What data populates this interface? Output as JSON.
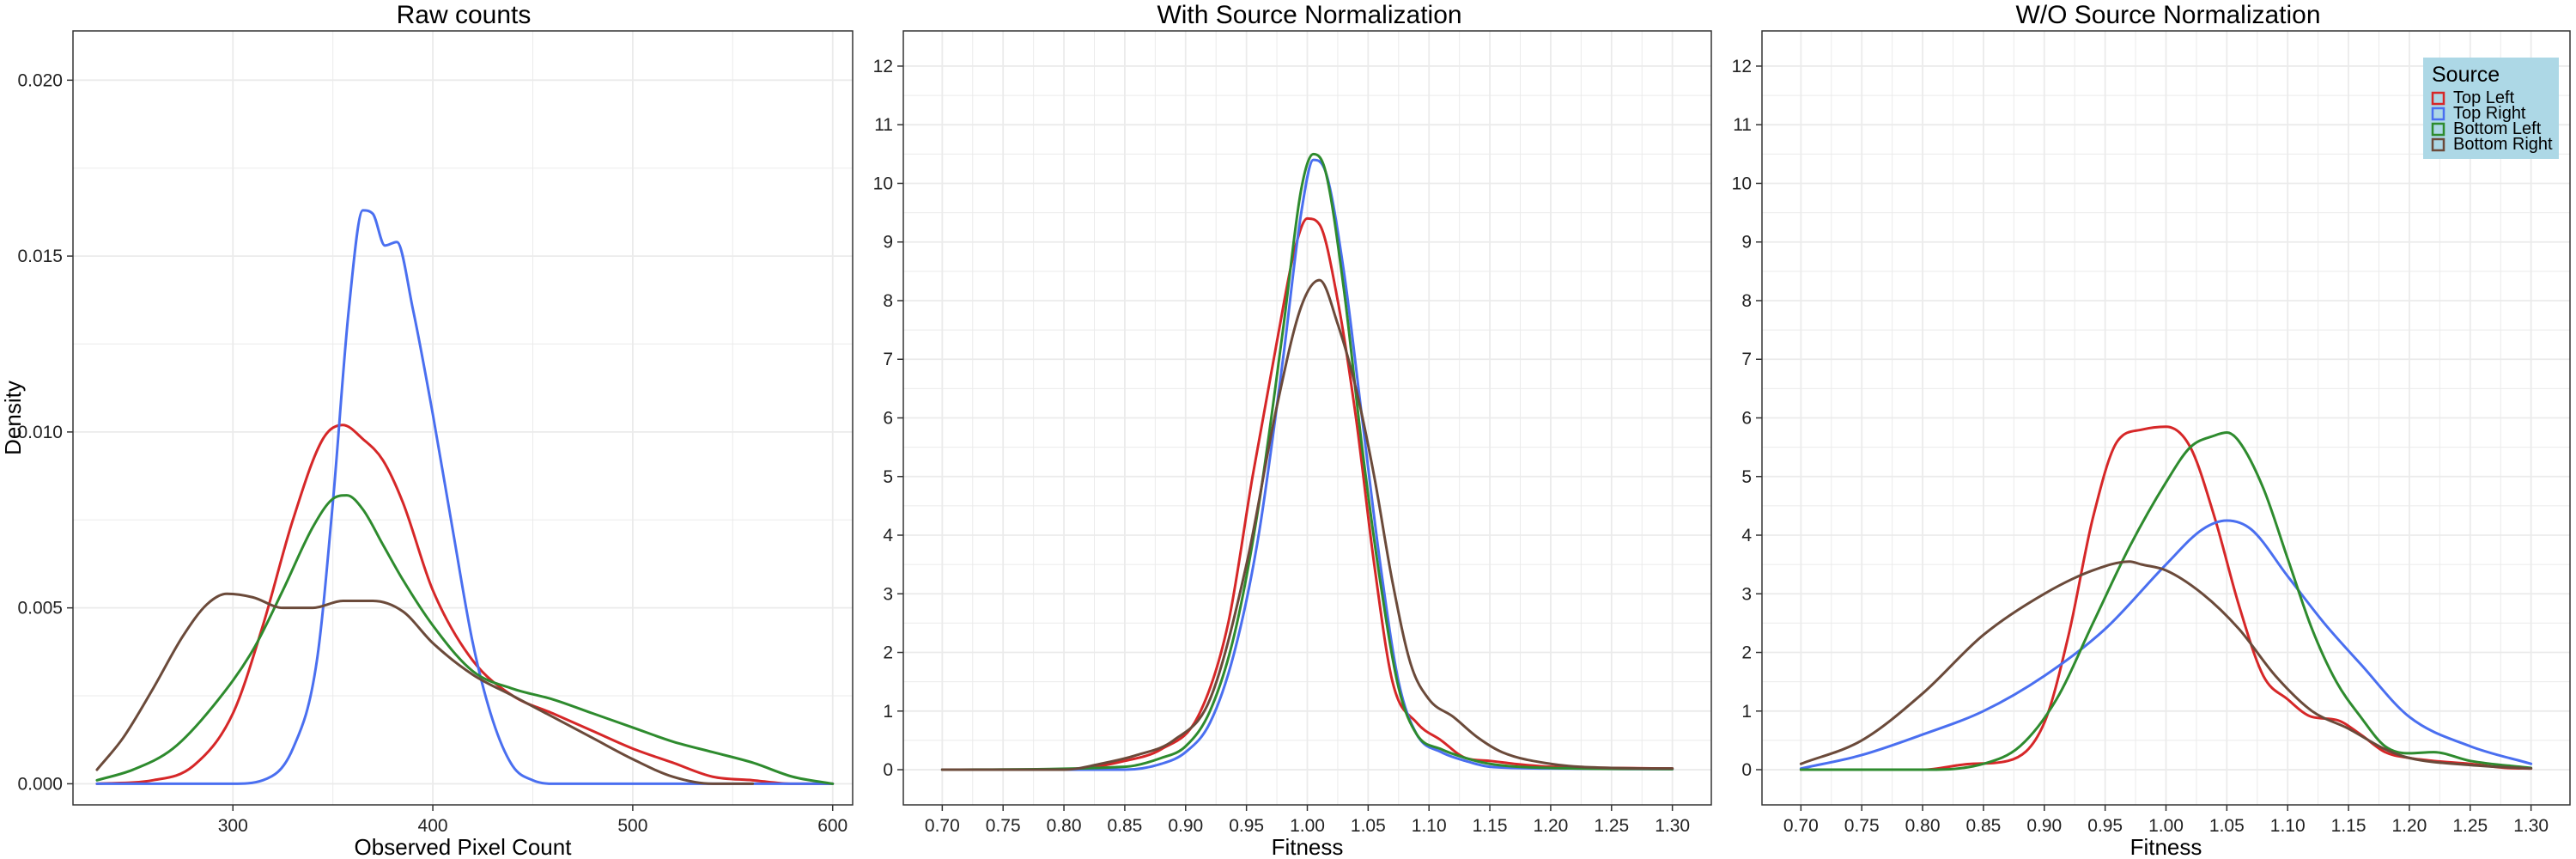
{
  "colors": {
    "top_left": "#d62728",
    "top_right": "#4a6ff0",
    "bottom_left": "#2e8b2e",
    "bottom_right": "#6b4a3a",
    "legend_bg": "#add8e6",
    "grid": "#ebebeb",
    "panel_border": "#333333"
  },
  "legend": {
    "title": "Source",
    "position": "top-right",
    "panel_index": 2,
    "entries": [
      "Top Left",
      "Top Right",
      "Bottom Left",
      "Bottom Right"
    ]
  },
  "chart_data": [
    {
      "type": "line",
      "title": "Raw counts",
      "xlabel": "Observed Pixel Count",
      "ylabel": "Density",
      "xlim": [
        220,
        610
      ],
      "ylim": [
        -0.0006,
        0.0214
      ],
      "xticks": [
        300,
        400,
        500,
        600
      ],
      "xtick_labels": [
        "300",
        "400",
        "500",
        "600"
      ],
      "yticks": [
        0,
        0.005,
        0.01,
        0.015,
        0.02
      ],
      "ytick_labels": [
        "0.000",
        "0.005",
        "0.010",
        "0.015",
        "0.020"
      ],
      "grid": true,
      "series": [
        {
          "name": "Top Left",
          "color_key": "top_left",
          "x": [
            232,
            260,
            280,
            300,
            315,
            330,
            345,
            355,
            365,
            375,
            385,
            400,
            420,
            440,
            460,
            480,
            500,
            520,
            540,
            560,
            580,
            600
          ],
          "y": [
            0.0,
            0.0001,
            0.0005,
            0.002,
            0.0045,
            0.0075,
            0.0098,
            0.0102,
            0.0098,
            0.0092,
            0.008,
            0.0055,
            0.0035,
            0.0025,
            0.002,
            0.0015,
            0.001,
            0.0006,
            0.0002,
            0.0001,
            0.0,
            0.0
          ]
        },
        {
          "name": "Top Right",
          "color_key": "top_right",
          "x": [
            232,
            300,
            315,
            330,
            342,
            350,
            358,
            365,
            370,
            376,
            382,
            390,
            400,
            410,
            420,
            430,
            440,
            450,
            460,
            600
          ],
          "y": [
            0.0,
            0.0,
            0.0001,
            0.001,
            0.0035,
            0.008,
            0.0135,
            0.0163,
            0.0162,
            0.0153,
            0.0154,
            0.0135,
            0.0105,
            0.0072,
            0.004,
            0.0018,
            0.0005,
            0.0001,
            0.0,
            0.0
          ]
        },
        {
          "name": "Bottom Left",
          "color_key": "bottom_left",
          "x": [
            232,
            250,
            270,
            290,
            310,
            325,
            340,
            350,
            357,
            365,
            375,
            385,
            400,
            420,
            440,
            460,
            480,
            500,
            520,
            540,
            560,
            580,
            600
          ],
          "y": [
            0.0001,
            0.0004,
            0.001,
            0.0022,
            0.0038,
            0.0055,
            0.0073,
            0.0081,
            0.0082,
            0.0078,
            0.0068,
            0.0058,
            0.0045,
            0.0032,
            0.0027,
            0.0024,
            0.002,
            0.0016,
            0.0012,
            0.0009,
            0.0006,
            0.0002,
            0.0
          ]
        },
        {
          "name": "Bottom Right",
          "color_key": "bottom_right",
          "x": [
            232,
            245,
            260,
            275,
            287,
            297,
            310,
            325,
            340,
            355,
            370,
            385,
            400,
            420,
            440,
            460,
            480,
            500,
            520,
            540,
            560
          ],
          "y": [
            0.0004,
            0.0013,
            0.0027,
            0.0042,
            0.0051,
            0.0054,
            0.0053,
            0.005,
            0.005,
            0.0052,
            0.0052,
            0.0049,
            0.004,
            0.0031,
            0.0025,
            0.0019,
            0.0013,
            0.0007,
            0.0002,
            0.0,
            0.0
          ]
        }
      ]
    },
    {
      "type": "line",
      "title": "With Source Normalization",
      "xlabel": "Fitness",
      "ylabel": "",
      "xlim": [
        0.668,
        1.332
      ],
      "ylim": [
        -0.6,
        12.6
      ],
      "xticks": [
        0.7,
        0.75,
        0.8,
        0.85,
        0.9,
        0.95,
        1.0,
        1.05,
        1.1,
        1.15,
        1.2,
        1.25,
        1.3
      ],
      "xtick_labels": [
        "0.70",
        "0.75",
        "0.80",
        "0.85",
        "0.90",
        "0.95",
        "1.00",
        "1.05",
        "1.10",
        "1.15",
        "1.20",
        "1.25",
        "1.30"
      ],
      "yticks": [
        0,
        1,
        2,
        3,
        4,
        5,
        6,
        7,
        8,
        9,
        10,
        11,
        12
      ],
      "ytick_labels": [
        "0",
        "1",
        "2",
        "3",
        "4",
        "5",
        "6",
        "7",
        "8",
        "9",
        "10",
        "11",
        "12"
      ],
      "grid": true,
      "series": [
        {
          "name": "Top Left",
          "color_key": "top_left",
          "x": [
            0.7,
            0.8,
            0.85,
            0.88,
            0.91,
            0.935,
            0.955,
            0.975,
            0.99,
            1.0,
            1.01,
            1.025,
            1.04,
            1.055,
            1.07,
            1.09,
            1.11,
            1.13,
            1.15,
            1.17,
            1.2,
            1.25,
            1.3
          ],
          "y": [
            0,
            0,
            0.15,
            0.35,
            0.9,
            2.5,
            5.0,
            7.3,
            8.9,
            9.4,
            9.3,
            8.0,
            6.0,
            3.5,
            1.5,
            0.8,
            0.5,
            0.2,
            0.15,
            0.1,
            0.05,
            0.03,
            0.02
          ]
        },
        {
          "name": "Top Right",
          "color_key": "top_right",
          "x": [
            0.7,
            0.85,
            0.88,
            0.9,
            0.92,
            0.94,
            0.96,
            0.98,
            0.995,
            1.005,
            1.015,
            1.03,
            1.045,
            1.06,
            1.075,
            1.09,
            1.11,
            1.13,
            1.15,
            1.2,
            1.3
          ],
          "y": [
            0,
            0,
            0.1,
            0.3,
            0.8,
            2.0,
            4.0,
            7.0,
            9.5,
            10.4,
            10.2,
            8.5,
            6.0,
            3.5,
            1.5,
            0.6,
            0.3,
            0.15,
            0.05,
            0.02,
            0.01
          ]
        },
        {
          "name": "Bottom Left",
          "color_key": "bottom_left",
          "x": [
            0.7,
            0.85,
            0.88,
            0.9,
            0.92,
            0.94,
            0.96,
            0.98,
            0.995,
            1.005,
            1.015,
            1.03,
            1.045,
            1.06,
            1.075,
            1.09,
            1.11,
            1.13,
            1.15,
            1.2,
            1.3
          ],
          "y": [
            0,
            0.05,
            0.2,
            0.4,
            1.0,
            2.3,
            4.5,
            7.5,
            9.9,
            10.5,
            10.2,
            8.2,
            5.5,
            3.2,
            1.4,
            0.6,
            0.35,
            0.2,
            0.1,
            0.03,
            0.01
          ]
        },
        {
          "name": "Bottom Right",
          "color_key": "bottom_right",
          "x": [
            0.7,
            0.8,
            0.83,
            0.86,
            0.89,
            0.92,
            0.95,
            0.975,
            0.995,
            1.01,
            1.025,
            1.04,
            1.055,
            1.07,
            1.085,
            1.1,
            1.12,
            1.14,
            1.16,
            1.2,
            1.25,
            1.3
          ],
          "y": [
            0,
            0,
            0.1,
            0.25,
            0.5,
            1.2,
            3.5,
            6.2,
            7.9,
            8.35,
            7.6,
            6.5,
            5.0,
            3.2,
            1.8,
            1.2,
            0.9,
            0.55,
            0.3,
            0.1,
            0.03,
            0.02
          ]
        }
      ]
    },
    {
      "type": "line",
      "title": "W/O Source Normalization",
      "xlabel": "Fitness",
      "ylabel": "",
      "xlim": [
        0.668,
        1.332
      ],
      "ylim": [
        -0.6,
        12.6
      ],
      "xticks": [
        0.7,
        0.75,
        0.8,
        0.85,
        0.9,
        0.95,
        1.0,
        1.05,
        1.1,
        1.15,
        1.2,
        1.25,
        1.3
      ],
      "xtick_labels": [
        "0.70",
        "0.75",
        "0.80",
        "0.85",
        "0.90",
        "0.95",
        "1.00",
        "1.05",
        "1.10",
        "1.15",
        "1.20",
        "1.25",
        "1.30"
      ],
      "yticks": [
        0,
        1,
        2,
        3,
        4,
        5,
        6,
        7,
        8,
        9,
        10,
        11,
        12
      ],
      "ytick_labels": [
        "0",
        "1",
        "2",
        "3",
        "4",
        "5",
        "6",
        "7",
        "8",
        "9",
        "10",
        "11",
        "12"
      ],
      "grid": true,
      "series": [
        {
          "name": "Top Left",
          "color_key": "top_left",
          "x": [
            0.7,
            0.8,
            0.84,
            0.87,
            0.9,
            0.92,
            0.94,
            0.96,
            0.98,
            1.0,
            1.02,
            1.04,
            1.06,
            1.08,
            1.1,
            1.12,
            1.14,
            1.16,
            1.18,
            1.2,
            1.22,
            1.25,
            1.28,
            1.3
          ],
          "y": [
            0,
            0,
            0.1,
            0.15,
            0.8,
            2.3,
            4.3,
            5.6,
            5.8,
            5.85,
            5.5,
            4.3,
            2.8,
            1.6,
            1.2,
            0.9,
            0.85,
            0.6,
            0.3,
            0.2,
            0.15,
            0.1,
            0.03,
            0.02
          ]
        },
        {
          "name": "Top Right",
          "color_key": "top_right",
          "x": [
            0.7,
            0.75,
            0.8,
            0.85,
            0.9,
            0.95,
            1.0,
            1.03,
            1.05,
            1.07,
            1.1,
            1.13,
            1.16,
            1.2,
            1.25,
            1.3
          ],
          "y": [
            0.02,
            0.25,
            0.6,
            1.0,
            1.6,
            2.4,
            3.5,
            4.1,
            4.25,
            4.1,
            3.3,
            2.5,
            1.8,
            0.9,
            0.4,
            0.1
          ]
        },
        {
          "name": "Bottom Left",
          "color_key": "bottom_left",
          "x": [
            0.7,
            0.8,
            0.85,
            0.88,
            0.91,
            0.94,
            0.97,
            1.0,
            1.02,
            1.04,
            1.05,
            1.06,
            1.08,
            1.1,
            1.12,
            1.14,
            1.16,
            1.18,
            1.2,
            1.22,
            1.25,
            1.3
          ],
          "y": [
            0,
            0,
            0.1,
            0.4,
            1.2,
            2.5,
            3.8,
            4.9,
            5.5,
            5.7,
            5.75,
            5.6,
            4.8,
            3.6,
            2.4,
            1.5,
            0.9,
            0.4,
            0.28,
            0.3,
            0.15,
            0.03
          ]
        },
        {
          "name": "Bottom Right",
          "color_key": "bottom_right",
          "x": [
            0.7,
            0.75,
            0.8,
            0.85,
            0.9,
            0.94,
            0.97,
            0.98,
            1.0,
            1.03,
            1.06,
            1.09,
            1.12,
            1.15,
            1.18,
            1.2,
            1.25,
            1.3
          ],
          "y": [
            0.1,
            0.5,
            1.3,
            2.3,
            3.0,
            3.4,
            3.55,
            3.5,
            3.4,
            3.0,
            2.4,
            1.6,
            1.0,
            0.7,
            0.35,
            0.2,
            0.08,
            0.02
          ]
        }
      ]
    }
  ]
}
